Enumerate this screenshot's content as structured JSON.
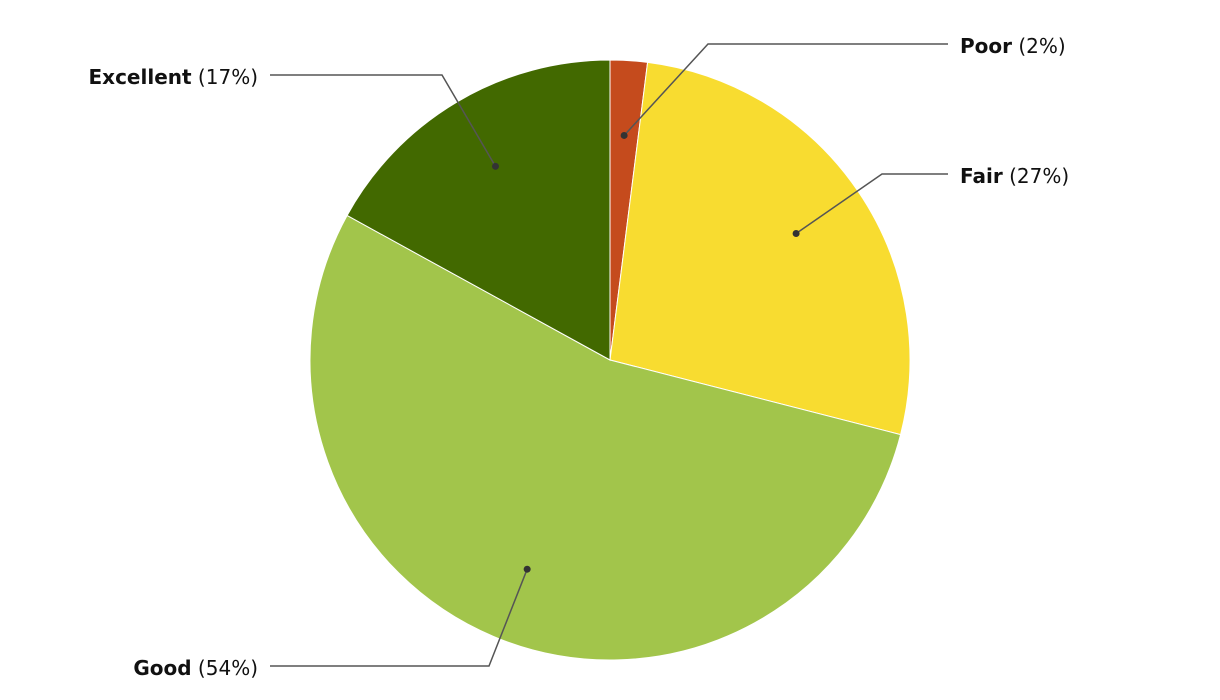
{
  "chart_data": {
    "type": "pie",
    "title": "",
    "start": "top",
    "direction": "clockwise",
    "slices": [
      {
        "label": "Poor",
        "value": 2,
        "pct_label": "(2%)",
        "color": "#c54b1d"
      },
      {
        "label": "Fair",
        "value": 27,
        "pct_label": "(27%)",
        "color": "#f8dc30"
      },
      {
        "label": "Good",
        "value": 54,
        "pct_label": "(54%)",
        "color": "#a2c54b"
      },
      {
        "label": "Excellent",
        "value": 17,
        "pct_label": "(17%)",
        "color": "#426900"
      }
    ],
    "legend": "callout-labels"
  }
}
